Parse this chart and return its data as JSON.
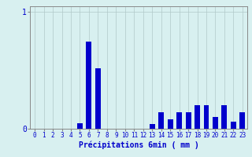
{
  "hours": [
    0,
    1,
    2,
    3,
    4,
    5,
    6,
    7,
    8,
    9,
    10,
    11,
    12,
    13,
    14,
    15,
    16,
    17,
    18,
    19,
    20,
    21,
    22,
    23
  ],
  "values": [
    0,
    0,
    0,
    0,
    0,
    0.05,
    0.75,
    0.52,
    0.0,
    0.0,
    0,
    0,
    0,
    0.04,
    0.14,
    0.08,
    0.14,
    0.14,
    0.2,
    0.2,
    0.1,
    0.2,
    0.06,
    0.14
  ],
  "bar_color": "#0000cc",
  "bg_color": "#d8f0f0",
  "grid_color": "#b0c8c8",
  "axis_color": "#888888",
  "text_color": "#0000cc",
  "xlabel": "Précipitations 6min ( mm )",
  "ylim": [
    0,
    1.05
  ],
  "xlim": [
    -0.5,
    23.5
  ],
  "yticks": [
    0,
    1
  ],
  "xticks": [
    0,
    1,
    2,
    3,
    4,
    5,
    6,
    7,
    8,
    9,
    10,
    11,
    12,
    13,
    14,
    15,
    16,
    17,
    18,
    19,
    20,
    21,
    22,
    23
  ],
  "xlabel_fontsize": 7,
  "tick_fontsize": 5.5,
  "ytick_fontsize": 7
}
